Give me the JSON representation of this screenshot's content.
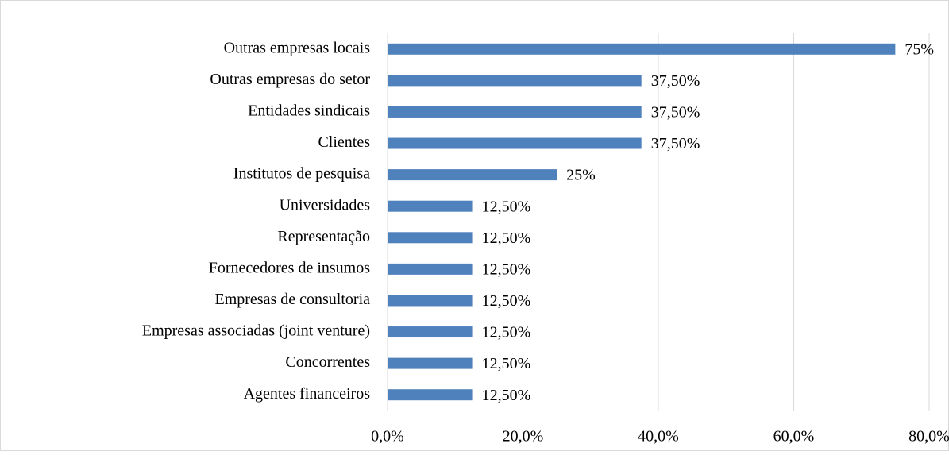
{
  "chart_data": {
    "type": "barh",
    "categories": [
      "Outras empresas locais",
      "Outras empresas do setor",
      "Entidades sindicais",
      "Clientes",
      "Institutos de pesquisa",
      "Universidades",
      "Representação",
      "Fornecedores de insumos",
      "Empresas de consultoria",
      "Empresas associadas (joint venture)",
      "Concorrentes",
      "Agentes financeiros"
    ],
    "values": [
      75,
      37.5,
      37.5,
      37.5,
      25,
      12.5,
      12.5,
      12.5,
      12.5,
      12.5,
      12.5,
      12.5
    ],
    "value_labels": [
      "75%",
      "37,50%",
      "37,50%",
      "37,50%",
      "25%",
      "12,50%",
      "12,50%",
      "12,50%",
      "12,50%",
      "12,50%",
      "12,50%",
      "12,50%"
    ],
    "color": "#4f81bd",
    "xlim": [
      0,
      80
    ],
    "xticks": [
      {
        "value": 0,
        "label": "0,0%"
      },
      {
        "value": 20,
        "label": "20,0%"
      },
      {
        "value": 40,
        "label": "40,0%"
      },
      {
        "value": 60,
        "label": "60,0%"
      },
      {
        "value": 80,
        "label": "80,0%"
      }
    ],
    "grid": true
  }
}
